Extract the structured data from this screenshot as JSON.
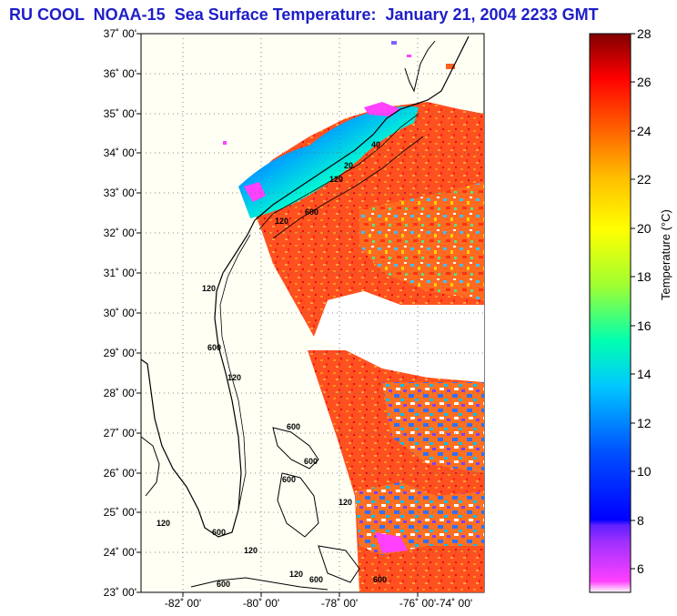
{
  "title": "RU COOL  NOAA-15  Sea Surface Temperature:  January 21, 2004 2233 GMT",
  "map": {
    "latitude_labels": [
      "37˚ 00'",
      "36˚ 00'",
      "35˚ 00'",
      "34˚ 00'",
      "33˚ 00'",
      "32˚ 00'",
      "31˚ 00'",
      "30˚ 00'",
      "29˚ 00'",
      "28˚ 00'",
      "27˚ 00'",
      "26˚ 00'",
      "25˚ 00'",
      "24˚ 00'",
      "23˚ 00'"
    ],
    "longitude_labels": [
      "-82˚ 00'",
      "-80˚ 00'",
      "-78˚ 00'",
      "-76˚ 00'",
      "-74˚ 00'"
    ],
    "depth_contour_labels": {
      "d600": "600",
      "d120": "120",
      "d40": "40",
      "d20": "20"
    }
  },
  "colorbar": {
    "title": "Temperature (°C)",
    "tick_labels": [
      "28",
      "26",
      "24",
      "22",
      "20",
      "18",
      "16",
      "14",
      "12",
      "10",
      "8",
      "6"
    ],
    "range_celsius": [
      5,
      28
    ],
    "colors": {
      "c5": "#ff40ff",
      "c7": "#8030ff",
      "c8": "#0000ff",
      "c11": "#0060ff",
      "c14": "#00e0ff",
      "c17": "#60ff60",
      "c20": "#ffff00",
      "c23": "#ff9000",
      "c26": "#ff0000",
      "c28": "#800000"
    }
  }
}
